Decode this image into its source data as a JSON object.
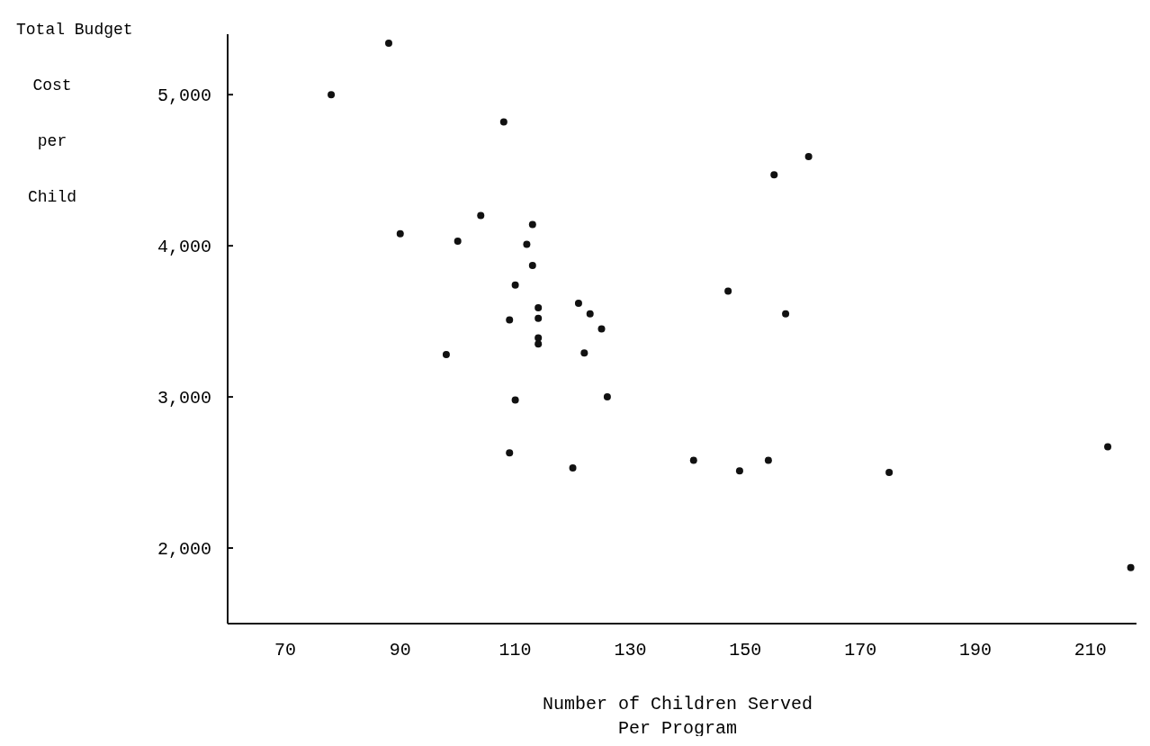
{
  "chart_data": {
    "type": "scatter",
    "xlabel": "Number of Children Served\nPer Program",
    "ylabel": "Total Budget\nCost\nper\nChild",
    "xlim": [
      60,
      218
    ],
    "ylim": [
      1500,
      5400
    ],
    "xticks": [
      70,
      90,
      110,
      130,
      150,
      170,
      190,
      210
    ],
    "yticks": [
      {
        "value": 2000,
        "label": "2,000"
      },
      {
        "value": 3000,
        "label": "3,000"
      },
      {
        "value": 4000,
        "label": "4,000"
      },
      {
        "value": 5000,
        "label": "5,000"
      }
    ],
    "grid": false,
    "marker": "circle",
    "series": [
      {
        "color": "#111111",
        "x": [
          78,
          88,
          108,
          90,
          100,
          104,
          113,
          112,
          113,
          110,
          109,
          114,
          114,
          114,
          114,
          121,
          123,
          125,
          122,
          98,
          110,
          126,
          120,
          109,
          141,
          149,
          154,
          175,
          213,
          217,
          147,
          157,
          155,
          161
        ],
        "values": [
          5000,
          5340,
          4820,
          4080,
          4030,
          4200,
          4140,
          4010,
          3870,
          3740,
          3510,
          3590,
          3520,
          3390,
          3350,
          3620,
          3550,
          3450,
          3290,
          3280,
          2980,
          3000,
          2530,
          2630,
          2580,
          2510,
          2580,
          2500,
          2670,
          1870,
          3700,
          3550,
          4470,
          4590
        ]
      }
    ]
  }
}
